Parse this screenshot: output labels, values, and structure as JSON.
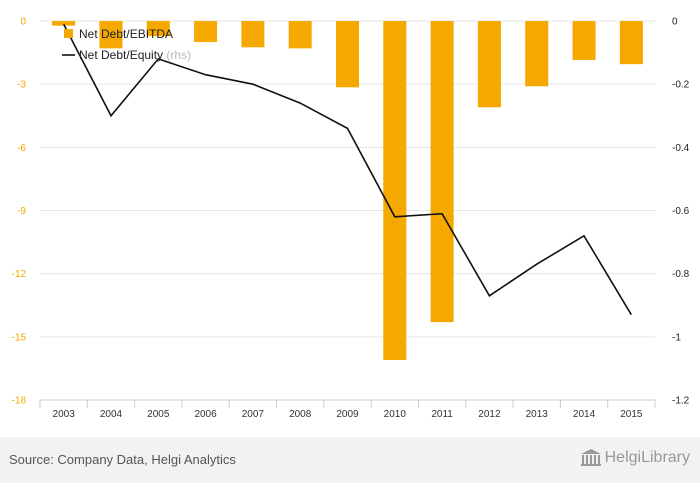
{
  "chart_data": {
    "type": "bar",
    "categories": [
      "2003",
      "2004",
      "2005",
      "2006",
      "2007",
      "2008",
      "2009",
      "2010",
      "2011",
      "2012",
      "2013",
      "2014",
      "2015"
    ],
    "series": [
      {
        "name": "Net Debt/EBITDA",
        "axis": "left",
        "render": "bar",
        "color": "#f5a800",
        "values": [
          -0.22,
          -1.3,
          -0.72,
          -1.0,
          -1.25,
          -1.3,
          -3.15,
          -16.1,
          -14.3,
          -4.1,
          -3.1,
          -1.85,
          -2.05
        ]
      },
      {
        "name": "Net Debt/Equity",
        "name_suffix": "(rhs)",
        "axis": "right",
        "render": "line",
        "color": "#111111",
        "values": [
          -0.01,
          -0.3,
          -0.12,
          -0.17,
          -0.2,
          -0.26,
          -0.34,
          -0.62,
          -0.61,
          -0.87,
          -0.77,
          -0.68,
          -0.93
        ]
      }
    ],
    "y_left": {
      "ylim": [
        -18,
        0
      ],
      "ticks": [
        "0",
        "-3",
        "-6",
        "-9",
        "-12",
        "-15",
        "-18"
      ],
      "color": "#f5a800"
    },
    "y_right": {
      "ylim": [
        -1.2,
        0
      ],
      "ticks": [
        "0",
        "-0.2",
        "-0.4",
        "-0.6",
        "-0.8",
        "-1",
        "-1.2"
      ]
    },
    "grid": true,
    "legend_position": "top-left"
  },
  "footer": {
    "source": "Source: Company Data, Helgi Analytics",
    "logo_text": "HelgiLibrary"
  }
}
